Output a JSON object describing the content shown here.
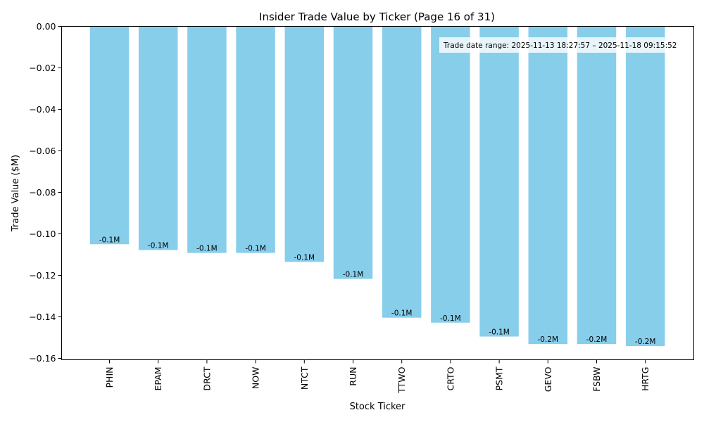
{
  "chart_data": {
    "type": "bar",
    "title": "Insider Trade Value by Ticker (Page 16 of 31)",
    "xlabel": "Stock Ticker",
    "ylabel": "Trade Value ($M)",
    "ylim": [
      -0.16,
      0.0
    ],
    "yticks": [
      0.0,
      -0.02,
      -0.04,
      -0.06,
      -0.08,
      -0.1,
      -0.12,
      -0.14,
      -0.16
    ],
    "ytick_labels": [
      "0.00",
      "−0.02",
      "−0.04",
      "−0.06",
      "−0.08",
      "−0.10",
      "−0.12",
      "−0.14",
      "−0.16"
    ],
    "grid": false,
    "bar_color": "#87CEEB",
    "categories": [
      "PHIN",
      "EPAM",
      "DRCT",
      "NOW",
      "NTCT",
      "RUN",
      "TTWO",
      "CRTO",
      "PSMT",
      "GEVO",
      "FSBW",
      "HRTG"
    ],
    "values": [
      -0.105,
      -0.1078,
      -0.1092,
      -0.1092,
      -0.1135,
      -0.1217,
      -0.1404,
      -0.1428,
      -0.1495,
      -0.1531,
      -0.1531,
      -0.1541
    ],
    "data_labels": [
      "-0.1M",
      "-0.1M",
      "-0.1M",
      "-0.1M",
      "-0.1M",
      "-0.1M",
      "-0.1M",
      "-0.1M",
      "-0.1M",
      "-0.2M",
      "-0.2M",
      "-0.2M"
    ],
    "annotation": "Trade date range: 2025-11-13 18:27:57 – 2025-11-18 09:15:52"
  }
}
